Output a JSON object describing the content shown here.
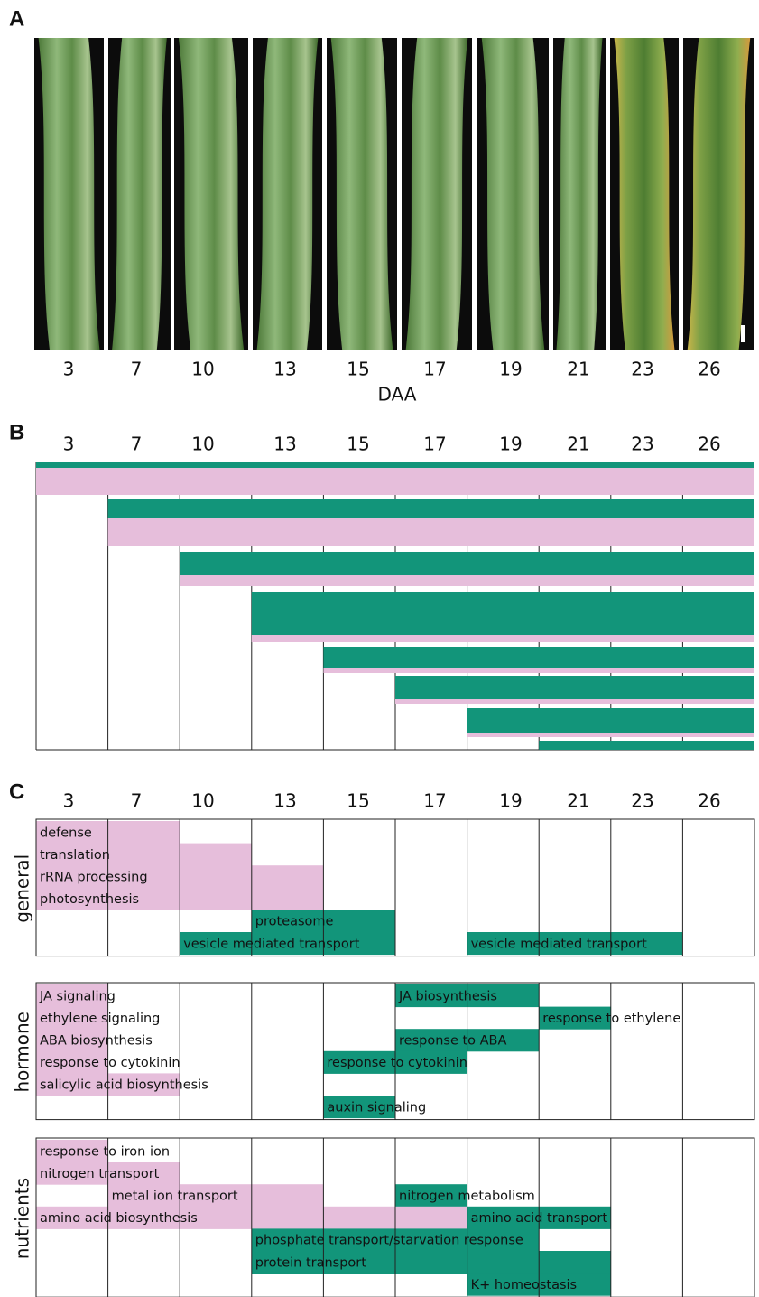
{
  "panel_labels": [
    "A",
    "B",
    "C"
  ],
  "daa": [
    3,
    7,
    10,
    13,
    15,
    17,
    19,
    21,
    23,
    26
  ],
  "axis_label": "DAA",
  "panel_b": {
    "rows": [
      {
        "start": 3,
        "end": 26
      },
      {
        "start": 7,
        "end": 26
      },
      {
        "start": 10,
        "end": 26
      },
      {
        "start": 13,
        "end": 26
      },
      {
        "start": 15,
        "end": 26
      },
      {
        "start": 17,
        "end": 26
      },
      {
        "start": 19,
        "end": 26
      },
      {
        "start": 21,
        "end": 26
      }
    ],
    "up_color": "#12957a",
    "down_color": "#e6bedb"
  },
  "panel_c": {
    "groups": [
      {
        "title": "general",
        "rows": [
          [
            {
              "label": "defense",
              "start": 3,
              "end": 7,
              "color": "#e6bedb"
            }
          ],
          [
            {
              "label": "translation",
              "start": 3,
              "end": 10,
              "color": "#e6bedb"
            }
          ],
          [
            {
              "label": "rRNA processing",
              "start": 3,
              "end": 13,
              "color": "#e6bedb"
            }
          ],
          [
            {
              "label": "photosynthesis",
              "start": 3,
              "end": 13,
              "color": "#e6bedb"
            }
          ],
          [
            {
              "label": "proteasome",
              "start": 13,
              "end": 15,
              "color": "#12957a"
            }
          ],
          [
            {
              "label": "vesicle mediated transport",
              "start": 10,
              "end": 15,
              "color": "#12957a"
            },
            {
              "label": "vesicle mediated transport",
              "start": 19,
              "end": 23,
              "color": "#12957a"
            }
          ]
        ]
      },
      {
        "title": "hormone",
        "rows": [
          [
            {
              "label": "JA signaling",
              "start": 3,
              "end": 3,
              "color": "#e6bedb"
            },
            {
              "label": "JA biosynthesis",
              "start": 17,
              "end": 19,
              "color": "#12957a"
            }
          ],
          [
            {
              "label": "ethylene signaling",
              "start": 3,
              "end": 3,
              "color": "#e6bedb"
            },
            {
              "label": "response to ethylene",
              "start": 21,
              "end": 21,
              "color": "#12957a"
            }
          ],
          [
            {
              "label": "ABA biosynthesis",
              "start": 3,
              "end": 3,
              "color": "#e6bedb"
            },
            {
              "label": "response to ABA",
              "start": 17,
              "end": 19,
              "color": "#12957a"
            }
          ],
          [
            {
              "label": "response to cytokinin",
              "start": 3,
              "end": 3,
              "color": "#e6bedb"
            },
            {
              "label": "response to cytokinin",
              "start": 15,
              "end": 17,
              "color": "#12957a"
            }
          ],
          [
            {
              "label": "salicylic acid biosynthesis",
              "start": 3,
              "end": 7,
              "color": "#e6bedb"
            }
          ],
          [
            {
              "label": "auxin signaling",
              "start": 15,
              "end": 15,
              "color": "#12957a"
            }
          ]
        ]
      },
      {
        "title": "nutrients",
        "rows": [
          [
            {
              "label": "response to iron ion",
              "start": 3,
              "end": 3,
              "color": "#e6bedb"
            }
          ],
          [
            {
              "label": "nitrogen transport",
              "start": 3,
              "end": 7,
              "color": "#e6bedb"
            }
          ],
          [
            {
              "label": "metal ion transport",
              "start": 7,
              "end": 13,
              "color": "#e6bedb"
            },
            {
              "label": "nitrogen metabolism",
              "start": 17,
              "end": 17,
              "color": "#12957a"
            }
          ],
          [
            {
              "label": "amino acid biosynthesis",
              "start": 3,
              "end": 17,
              "color": "#e6bedb"
            },
            {
              "label": "amino acid transport",
              "start": 19,
              "end": 21,
              "color": "#12957a"
            }
          ],
          [
            {
              "label": "phosphate transport/starvation response",
              "start": 13,
              "end": 19,
              "color": "#12957a"
            }
          ],
          [
            {
              "label": "protein transport",
              "start": 13,
              "end": 21,
              "color": "#12957a"
            }
          ],
          [
            {
              "label": "K+ homeostasis",
              "start": 19,
              "end": 21,
              "color": "#12957a"
            }
          ]
        ]
      }
    ]
  }
}
